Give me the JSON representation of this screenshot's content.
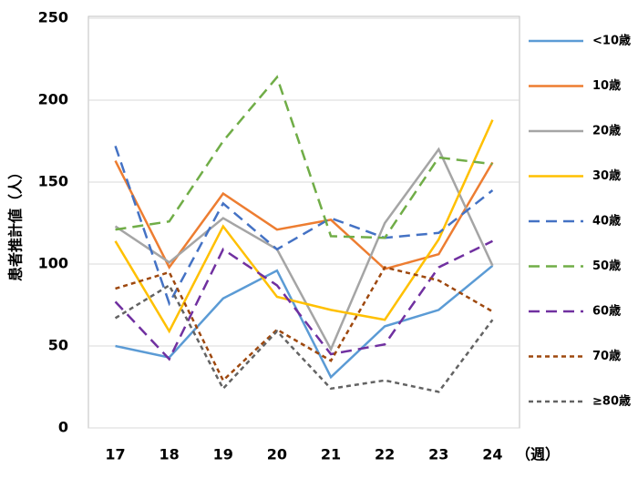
{
  "chart_data": {
    "type": "line",
    "y_label": "患者推計値（人）",
    "x_label": "（週）",
    "categories": [
      "17",
      "18",
      "19",
      "20",
      "21",
      "22",
      "23",
      "24"
    ],
    "ylim": [
      0,
      250
    ],
    "yticks": [
      0,
      50,
      100,
      150,
      200,
      250
    ],
    "grid": true,
    "legend": "right",
    "series": [
      {
        "name": "<10歳",
        "color": "#5b9bd5",
        "values": [
          50,
          43,
          79,
          96,
          31,
          62,
          72,
          99
        ]
      },
      {
        "name": "10歳",
        "color": "#ed7d31",
        "values": [
          163,
          98,
          143,
          121,
          127,
          97,
          106,
          162
        ]
      },
      {
        "name": "20歳",
        "color": "#a5a5a5",
        "values": [
          123,
          101,
          128,
          109,
          48,
          125,
          170,
          99
        ]
      },
      {
        "name": "30歳",
        "color": "#ffc000",
        "values": [
          114,
          59,
          123,
          80,
          72,
          66,
          115,
          188
        ]
      },
      {
        "name": "40歳",
        "color": "#4472c4",
        "dash": "long",
        "values": [
          172,
          76,
          137,
          109,
          128,
          116,
          119,
          145
        ]
      },
      {
        "name": "50歳",
        "color": "#70ad47",
        "dash": "long",
        "values": [
          121,
          126,
          175,
          214,
          117,
          116,
          165,
          161
        ]
      },
      {
        "name": "60歳",
        "color": "#7030a0",
        "dash": "long",
        "values": [
          77,
          42,
          109,
          87,
          45,
          51,
          98,
          114
        ]
      },
      {
        "name": "70歳",
        "color": "#9e480e",
        "dash": "short",
        "values": [
          85,
          95,
          29,
          60,
          41,
          98,
          90,
          71
        ]
      },
      {
        "name": "≥80歳",
        "color": "#636363",
        "dash": "short",
        "values": [
          67,
          87,
          24,
          59,
          24,
          29,
          22,
          66
        ]
      }
    ]
  }
}
